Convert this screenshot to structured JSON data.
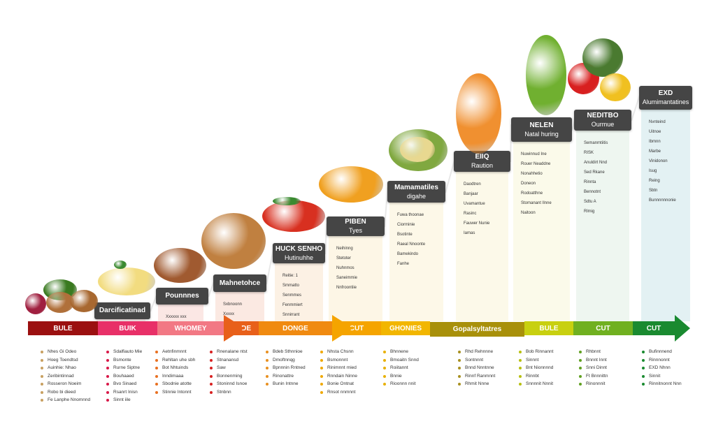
{
  "colors": {
    "label_bg": "#454545",
    "bar_start": "#9b1010",
    "bar_end": "#1a8a30"
  },
  "stages": [
    {
      "title": "Darcificatinad",
      "sub": "",
      "panel": "#fbeeee",
      "lines": []
    },
    {
      "title": "Pounnnes",
      "sub": "",
      "panel": "#fbe7e4",
      "lines": [
        "Xxxxxx xxx"
      ]
    },
    {
      "title": "Mahnetohce",
      "sub": "",
      "panel": "#fbe9e2",
      "lines": [
        "Sxbnoonn",
        "Xxxxx"
      ]
    },
    {
      "title": "HUCK SENHO",
      "sub": "Hutinuhhe",
      "panel": "#fcf1e4",
      "lines": [
        "Reitie: 1",
        "Smmatto",
        "Senmmes",
        "Fenmmiert",
        "Snnirrant"
      ]
    },
    {
      "title": "PIBEN",
      "sub": "Tyes",
      "panel": "#fdf6e6",
      "lines": [
        "Neihinng",
        "Stetoter",
        "Nuhnmos",
        "Saneimmie",
        "Nnfroontiie"
      ]
    },
    {
      "title": "Mamamatiles",
      "sub": "digahe",
      "panel": "#fdf8e8",
      "lines": [
        "Fuwa thoonae",
        "Ciorminie",
        "Bsotinte",
        "Raeal Nnoonte",
        "Bamekindo",
        "Fanhe"
      ]
    },
    {
      "title": "EIIQ",
      "sub": "Raution",
      "panel": "#fcf9e9",
      "lines": [
        "Daodtren",
        "Banjaar",
        "Uvamantue",
        "Rasinc",
        "Fauwer Nunie",
        "Iamas"
      ]
    },
    {
      "title": "NELEN",
      "sub": "Natal huring",
      "panel": "#fbfaea",
      "lines": [
        "Nuwinnud Ine",
        "Rouer Neaddne",
        "Nonahhetio",
        "Doneon",
        "Rodoatthne",
        "Stomanant Ilnne",
        "Naitoon"
      ]
    },
    {
      "title": "NEDITBO",
      "sub": "Ourmue",
      "panel": "#eef6f0",
      "lines": [
        "Semanmtiitis",
        "RISK",
        "Anuldirt Nnd",
        "Sed Rkane",
        "Rinnta",
        "Bennotnt",
        "Sdtu A",
        "Rlmig"
      ]
    },
    {
      "title": "EXD",
      "sub": "Alumimantatines",
      "panel": "#e3f1f3",
      "lines": [
        "Nvnteind",
        "Uitnoe",
        "Ibmnn",
        "Marbe",
        "Vinidonon",
        "Isug",
        "Reing",
        "Sbtn",
        "Bunnnnnnonie"
      ]
    }
  ],
  "bar": [
    {
      "label": "BULE",
      "color": "#9b1010"
    },
    {
      "label": "BUIK",
      "color": "#e83068"
    },
    {
      "label": "WHOMEY",
      "color": "#f27884"
    },
    {
      "label": "CADE",
      "color": "#e8601a"
    },
    {
      "label": "DONGE",
      "color": "#f08a10"
    },
    {
      "label": "CUT",
      "color": "#f5a400"
    },
    {
      "label": "GHONIES",
      "color": "#f2b600"
    },
    {
      "label": "Gopalsyltatres",
      "color": "#a8900a"
    },
    {
      "label": "BULE",
      "color": "#c8d010"
    },
    {
      "label": "CUT",
      "color": "#70b020"
    },
    {
      "label": "CUT",
      "color": "#1a8a30"
    }
  ],
  "bottom": [
    {
      "color": "#c8a060",
      "items": [
        "Nhes Gi Odeo",
        "Hoeg Toendtsd",
        "Auinhie: Nhao",
        "Zeribintinnad",
        "Rosseron Noeim",
        "Robo bi dieed",
        "Fe Lanphe Nnomnnd"
      ]
    },
    {
      "color": "#d81848",
      "items": [
        "Sdalfiauto Mie",
        "Bsmonte",
        "Rurne Siptne",
        "Bouhaaed",
        "Bvo Sinaed",
        "Rsanrt Inisn",
        "Sinnt iile"
      ]
    },
    {
      "color": "#e87020",
      "items": [
        "Aetnfinmnnt",
        "Rehltan uhe sbh",
        "Bot Nhtuinds",
        "Inndimaaa",
        "Sbodnie atotte",
        "Stinnie Intonnt"
      ]
    },
    {
      "color": "#d82020",
      "items": [
        "Rnenalane ntst",
        "Stnanansd",
        "Saw",
        "Bonnenming",
        "Stoninnd Isnoe",
        "Stnbnn"
      ]
    },
    {
      "color": "#e89020",
      "items": [
        "Bdeb Sthnnioe",
        "Dmoftnnqg",
        "Bpnnnin Rntned",
        "Rinonattre",
        "Bunin Intnne"
      ]
    },
    {
      "color": "#f0a800",
      "items": [
        "Nhsta Chsnn",
        "Bsmonnnt",
        "Rinimnnt rnied",
        "Rnndain Ninne",
        "Bonie Ontnat",
        "Rnsot nnmnnt"
      ]
    },
    {
      "color": "#e8b000",
      "items": [
        "Bhnnene",
        "Bmoaitn Snnd",
        "Roiitannt",
        "Bnnie",
        "Rioonnn nnit"
      ]
    },
    {
      "color": "#a89020",
      "items": [
        "Rhd Rehnnne",
        "Sontnnnt",
        "Bnnd Nnntnne",
        "Rinnf Ranmnnt",
        "Rhmit Nnne"
      ]
    },
    {
      "color": "#b8c010",
      "items": [
        "Bob Rinnannt",
        "Sinnnt",
        "Bnt Nionnnnd",
        "Rinnbt",
        "Snnnnit Nnnit"
      ]
    },
    {
      "color": "#60a020",
      "items": [
        "Rhbnnt",
        "Bnnnt Innt",
        "Snni Dinnt",
        "Ft Bnnnittn",
        "Rinonnnit"
      ]
    },
    {
      "color": "#1a8a30",
      "items": [
        "Bufinnnend",
        "Rinnnonnt",
        "EXD Nhnn",
        "Sinnit",
        "Rinnitnonnt Nnn"
      ]
    }
  ]
}
